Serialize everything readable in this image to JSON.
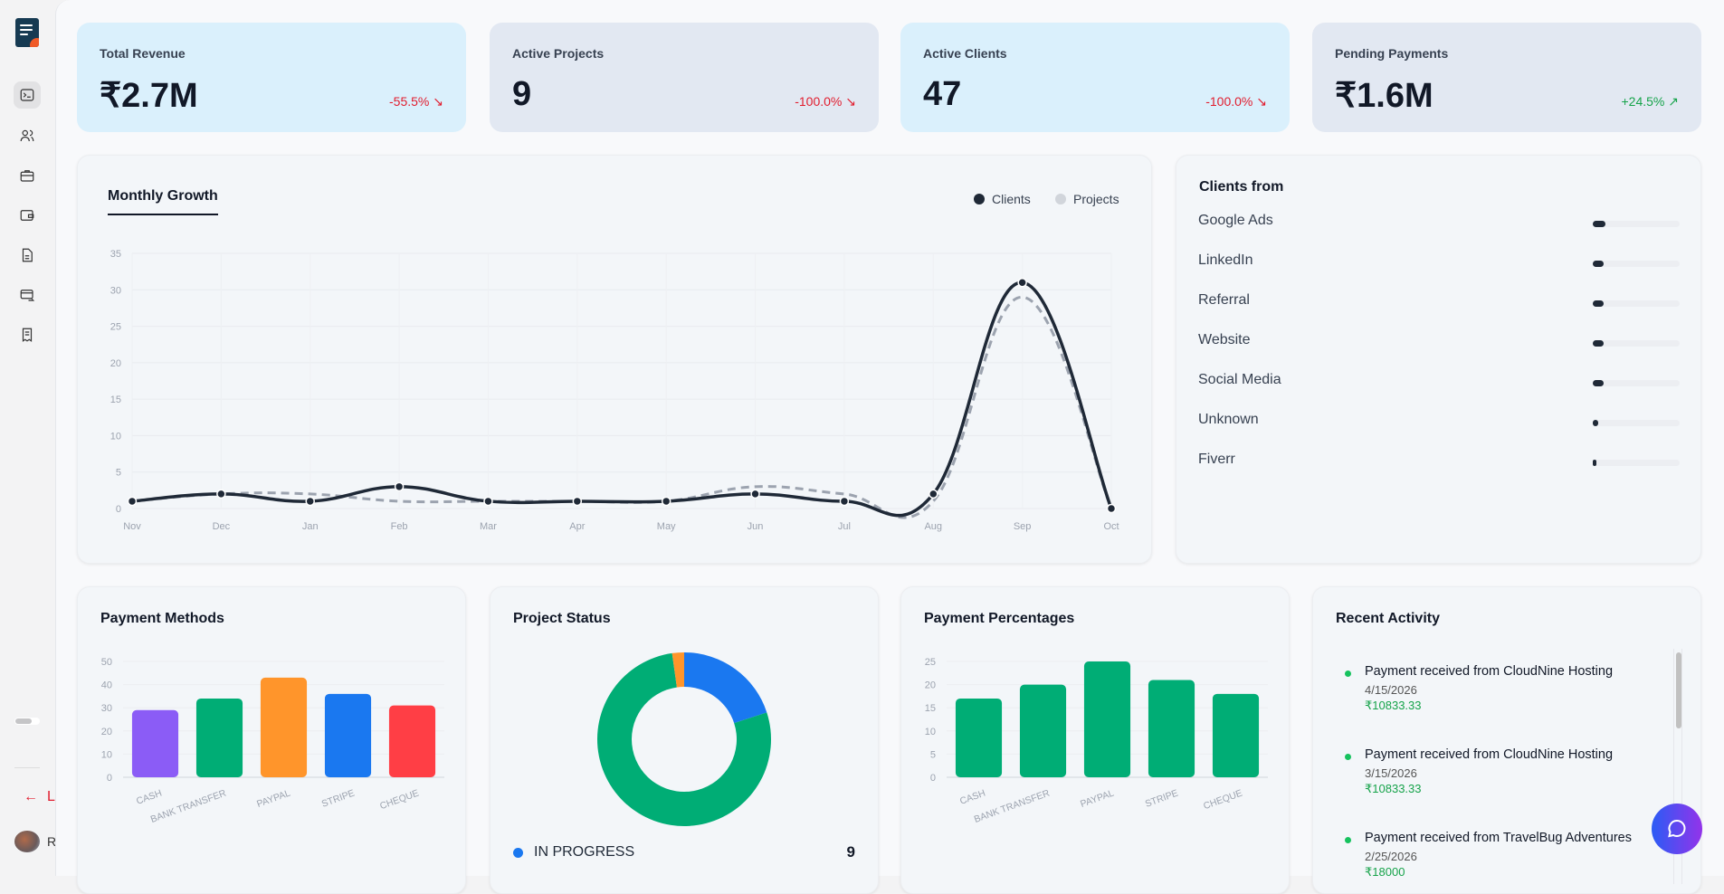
{
  "sidebar": {
    "nav": [
      "terminal-icon",
      "users-icon",
      "briefcase-icon",
      "wallet-icon",
      "document-icon",
      "card-transfer-icon",
      "receipt-icon"
    ],
    "logout_label": "L",
    "user_initial": "R"
  },
  "stats": [
    {
      "label": "Total Revenue",
      "value": "₹2.7M",
      "change": "-55.5%",
      "trend": "down",
      "bg": "#daf0fc"
    },
    {
      "label": "Active Projects",
      "value": "9",
      "change": "-100.0%",
      "trend": "down",
      "bg": "#e2e8f2"
    },
    {
      "label": "Active Clients",
      "value": "47",
      "change": "-100.0%",
      "trend": "down",
      "bg": "#daf0fc"
    },
    {
      "label": "Pending Payments",
      "value": "₹1.6M",
      "change": "+24.5%",
      "trend": "up",
      "bg": "#e2e8f2"
    }
  ],
  "growth": {
    "tab": "Monthly Growth",
    "legend": [
      "Clients",
      "Projects"
    ]
  },
  "clients_from": {
    "title": "Clients from",
    "sources": [
      {
        "name": "Google Ads",
        "share": 0.15
      },
      {
        "name": "LinkedIn",
        "share": 0.12
      },
      {
        "name": "Referral",
        "share": 0.12
      },
      {
        "name": "Website",
        "share": 0.12
      },
      {
        "name": "Social Media",
        "share": 0.12
      },
      {
        "name": "Unknown",
        "share": 0.06
      },
      {
        "name": "Fiverr",
        "share": 0.04
      }
    ]
  },
  "payment_methods": {
    "title": "Payment Methods"
  },
  "project_status": {
    "title": "Project Status",
    "legend_label": "IN PROGRESS",
    "legend_value": "9"
  },
  "payment_percentages": {
    "title": "Payment Percentages"
  },
  "recent": {
    "title": "Recent Activity",
    "items": [
      {
        "text": "Payment received from CloudNine Hosting",
        "date": "4/15/2026",
        "amount": "₹10833.33"
      },
      {
        "text": "Payment received from CloudNine Hosting",
        "date": "3/15/2026",
        "amount": "₹10833.33"
      },
      {
        "text": "Payment received from TravelBug Adventures",
        "date": "2/25/2026",
        "amount": "₹18000"
      }
    ]
  },
  "chart_data": [
    {
      "type": "line",
      "x": [
        "Nov",
        "Dec",
        "Jan",
        "Feb",
        "Mar",
        "Apr",
        "May",
        "Jun",
        "Jul",
        "Aug",
        "Sep",
        "Oct"
      ],
      "ylim": [
        0,
        35
      ],
      "yticks": [
        0,
        5,
        10,
        15,
        20,
        25,
        30,
        35
      ],
      "grid": true,
      "legend": "top-right",
      "series": [
        {
          "name": "Clients",
          "values": [
            1,
            2,
            1,
            3,
            1,
            1,
            1,
            2,
            1,
            2,
            31,
            0
          ],
          "color": "#1f2937",
          "style": "solid"
        },
        {
          "name": "Projects",
          "values": [
            1,
            2,
            2,
            1,
            1,
            1,
            1,
            3,
            2,
            1,
            29,
            0
          ],
          "color": "#9ca3af",
          "style": "dashed"
        }
      ]
    },
    {
      "type": "bar",
      "categories": [
        "CASH",
        "BANK TRANSFER",
        "PAYPAL",
        "STRIPE",
        "CHEQUE"
      ],
      "values": [
        29,
        34,
        43,
        36,
        31
      ],
      "colors": [
        "#8b5cf6",
        "#00ad75",
        "#ff952b",
        "#1a78f0",
        "#ff3e45"
      ],
      "ylim": [
        0,
        50
      ],
      "yticks": [
        0,
        10,
        20,
        30,
        40,
        50
      ]
    },
    {
      "type": "pie",
      "donut": true,
      "slices": [
        {
          "label": "IN PROGRESS",
          "value": 9,
          "color": "#1a78f0"
        },
        {
          "value": 35,
          "color": "#00ad75"
        },
        {
          "value": 1,
          "color": "#ff952b"
        }
      ]
    },
    {
      "type": "bar",
      "categories": [
        "CASH",
        "BANK TRANSFER",
        "PAYPAL",
        "STRIPE",
        "CHEQUE"
      ],
      "values": [
        17,
        20,
        25,
        21,
        18
      ],
      "colors": [
        "#00ad75"
      ],
      "ylim": [
        0,
        25
      ],
      "yticks": [
        0,
        5,
        10,
        15,
        20,
        25
      ]
    }
  ]
}
